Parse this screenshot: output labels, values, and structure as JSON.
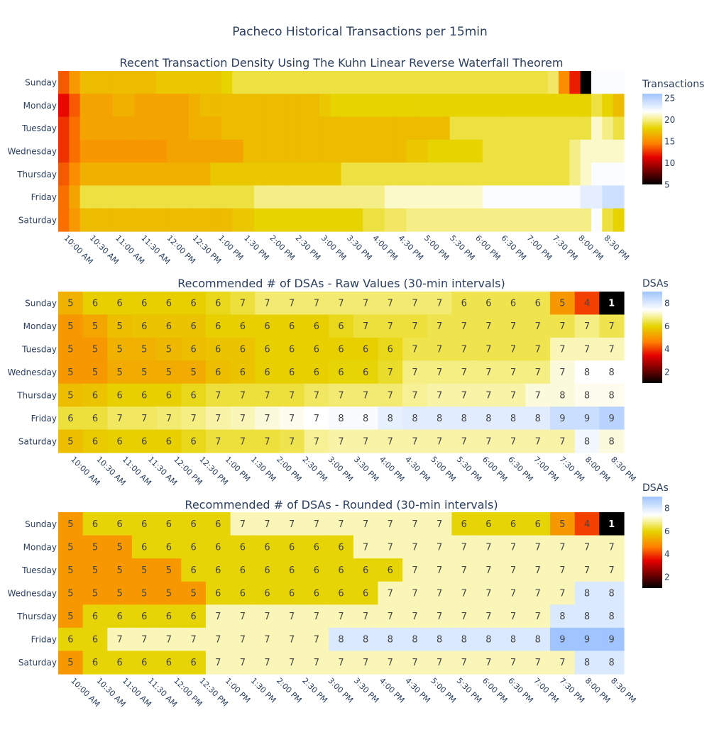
{
  "title": "Pacheco Historical Transactions per 15min",
  "chart_data": [
    {
      "type": "heatmap",
      "title": "Recent Transaction Density Using The Kuhn Linear Reverse Waterfall Theorem",
      "y": [
        "Sunday",
        "Monday",
        "Tuesday",
        "Wednesday",
        "Thursday",
        "Friday",
        "Saturday"
      ],
      "x_tick_labels": [
        "10:00 AM",
        "10:30 AM",
        "11:00 AM",
        "11:30 AM",
        "12:00 PM",
        "12:30 PM",
        "1:00 PM",
        "1:30 PM",
        "2:00 PM",
        "2:30 PM",
        "3:00 PM",
        "3:30 PM",
        "4:00 PM",
        "4:30 PM",
        "5:00 PM",
        "5:30 PM",
        "6:00 PM",
        "6:30 PM",
        "7:00 PM",
        "7:30 PM",
        "8:00 PM",
        "8:30 PM"
      ],
      "x_interval_minutes": 15,
      "z": [
        [
          13.5,
          15.5,
          17,
          17,
          17,
          17,
          17,
          17,
          17,
          17.5,
          17.5,
          17.5,
          17.5,
          17.5,
          17.5,
          18,
          19,
          19,
          19,
          19,
          19,
          19,
          19,
          19,
          19,
          19,
          19,
          19,
          19,
          19,
          19,
          19,
          19,
          19,
          19,
          19,
          19,
          19,
          19,
          19,
          19,
          19,
          19,
          19,
          19,
          19.5,
          15,
          12,
          5,
          22,
          22,
          22
        ],
        [
          11.5,
          13.5,
          16,
          16,
          16,
          16.5,
          16.5,
          16,
          16,
          16,
          16,
          16,
          16.5,
          17,
          17,
          17,
          17,
          17,
          17,
          17,
          17,
          17,
          17,
          17,
          17.5,
          18,
          18,
          18,
          18,
          18,
          18,
          18,
          18,
          18,
          18,
          18,
          18,
          18,
          18,
          18,
          18,
          18,
          18,
          18,
          18,
          18,
          18,
          18,
          18,
          19,
          18,
          17
        ],
        [
          12.5,
          14,
          16,
          16,
          16,
          16,
          16,
          16,
          16,
          16,
          16,
          16,
          16.5,
          16.5,
          16.5,
          17,
          17,
          17,
          17,
          17,
          17,
          17,
          17,
          17,
          17,
          17,
          17,
          17,
          17,
          17,
          17,
          17,
          17,
          17,
          17,
          17,
          19,
          19,
          19,
          19,
          19,
          19,
          19,
          19,
          19,
          19,
          19,
          19,
          19,
          21,
          20,
          19
        ],
        [
          12.5,
          14,
          15.5,
          15.5,
          15.5,
          15.5,
          15.5,
          15.5,
          15.5,
          15.5,
          16,
          16,
          16,
          16,
          16,
          16,
          16,
          17,
          17,
          17,
          17,
          17,
          17,
          17,
          17,
          17,
          17,
          17,
          17,
          17,
          17,
          17,
          17.5,
          17.5,
          18,
          18,
          18,
          18,
          18,
          19,
          19,
          19,
          19,
          19,
          19,
          19,
          19,
          20,
          21,
          21,
          21,
          21
        ],
        [
          13.5,
          15,
          16.5,
          16.5,
          16.5,
          16.5,
          16.5,
          16.5,
          16.5,
          16.5,
          16.5,
          16.5,
          16.5,
          16.5,
          17.5,
          17.5,
          17.5,
          17.5,
          17.5,
          17.5,
          17.5,
          17.5,
          17.5,
          17.5,
          17.5,
          17.5,
          19,
          19,
          19,
          19,
          19,
          19,
          19,
          19,
          19,
          19,
          19,
          19,
          19,
          19,
          19,
          19,
          19,
          19,
          19,
          19,
          19,
          20,
          21,
          22,
          22,
          22
        ],
        [
          14,
          16,
          19,
          19,
          19,
          19,
          19,
          19,
          19,
          19,
          19,
          19,
          19,
          19,
          19,
          19,
          19,
          19,
          20,
          20,
          20,
          20,
          20,
          20,
          20,
          20,
          20,
          20,
          20,
          20,
          21,
          21,
          21,
          21,
          21,
          21,
          21,
          21,
          21,
          22,
          22,
          22,
          22,
          22,
          22,
          22,
          22,
          22,
          23,
          23,
          24,
          24
        ],
        [
          14,
          15.5,
          17,
          17,
          17,
          17,
          17,
          17,
          17,
          17,
          17,
          17,
          17,
          17,
          17,
          17,
          17.5,
          17.5,
          18,
          18,
          18,
          18,
          18,
          18,
          18,
          18,
          18,
          18,
          19,
          19,
          19.5,
          19.5,
          20,
          20,
          20,
          20,
          20,
          20,
          20,
          20,
          20,
          20,
          20,
          20,
          20,
          20,
          20,
          20,
          20,
          22,
          19,
          18
        ]
      ],
      "zmin": 5,
      "zmax": 26,
      "colorbar": {
        "title": "Transactions",
        "ticks": [
          5,
          10,
          15,
          20,
          25
        ]
      },
      "colorscale": "hot-ice"
    },
    {
      "type": "heatmap",
      "title": "Recommended # of DSAs - Raw Values (30-min intervals)",
      "y": [
        "Sunday",
        "Monday",
        "Tuesday",
        "Wednesday",
        "Thursday",
        "Friday",
        "Saturday"
      ],
      "x_tick_labels": [
        "10:00 AM",
        "10:30 AM",
        "11:00 AM",
        "11:30 AM",
        "12:00 PM",
        "12:30 PM",
        "1:00 PM",
        "1:30 PM",
        "2:00 PM",
        "2:30 PM",
        "3:00 PM",
        "3:30 PM",
        "4:00 PM",
        "4:30 PM",
        "5:00 PM",
        "5:30 PM",
        "6:00 PM",
        "6:30 PM",
        "7:00 PM",
        "7:30 PM",
        "8:00 PM",
        "8:30 PM"
      ],
      "z": [
        [
          5.4,
          5.9,
          5.9,
          5.9,
          5.9,
          5.9,
          6.1,
          6.3,
          6.6,
          6.6,
          6.6,
          6.6,
          6.6,
          6.6,
          6.6,
          6.6,
          6.4,
          6.4,
          6.4,
          6.4,
          5.0,
          4.0,
          1.0
        ],
        [
          5.0,
          5.2,
          5.6,
          5.7,
          5.7,
          5.7,
          5.9,
          5.9,
          5.9,
          5.9,
          5.9,
          6.1,
          6.3,
          6.3,
          6.3,
          6.4,
          6.4,
          6.4,
          6.4,
          6.4,
          6.4,
          6.7,
          6.4
        ],
        [
          5.0,
          5.0,
          5.4,
          5.4,
          5.5,
          5.6,
          5.7,
          5.7,
          5.9,
          5.9,
          5.9,
          5.9,
          5.9,
          6.1,
          6.4,
          6.4,
          6.4,
          6.4,
          6.4,
          6.4,
          7.0,
          7.0,
          7.0
        ],
        [
          5.0,
          5.0,
          5.3,
          5.3,
          5.3,
          5.3,
          5.6,
          5.7,
          5.9,
          5.9,
          5.9,
          6.0,
          6.0,
          6.2,
          6.7,
          6.7,
          6.7,
          6.7,
          6.7,
          6.7,
          7.2,
          7.4,
          7.4
        ],
        [
          5.6,
          5.7,
          5.9,
          5.9,
          5.9,
          6.1,
          6.3,
          6.3,
          6.3,
          6.3,
          6.5,
          6.6,
          6.6,
          6.6,
          6.8,
          6.9,
          6.9,
          6.9,
          6.9,
          7.2,
          7.2,
          7.3,
          7.3
        ],
        [
          6.3,
          6.3,
          6.5,
          6.5,
          6.6,
          6.7,
          6.9,
          7.0,
          7.2,
          7.3,
          7.4,
          7.5,
          7.5,
          7.8,
          7.9,
          7.9,
          7.9,
          7.9,
          7.9,
          7.9,
          8.3,
          8.3,
          8.6
        ],
        [
          5.6,
          5.8,
          5.9,
          5.9,
          5.9,
          6.1,
          6.3,
          6.3,
          6.3,
          6.4,
          6.8,
          6.9,
          6.9,
          6.9,
          6.9,
          6.9,
          6.9,
          6.9,
          6.9,
          6.9,
          6.9,
          7.6,
          7.2
        ]
      ],
      "text": [
        [
          5,
          6,
          6,
          6,
          6,
          6,
          6,
          7,
          7,
          7,
          7,
          7,
          7,
          7,
          7,
          7,
          6,
          6,
          6,
          6,
          5,
          4,
          1
        ],
        [
          5,
          5,
          5,
          6,
          6,
          6,
          6,
          6,
          6,
          6,
          6,
          6,
          7,
          7,
          7,
          7,
          7,
          7,
          7,
          7,
          7,
          7,
          7
        ],
        [
          5,
          5,
          5,
          5,
          5,
          6,
          6,
          6,
          6,
          6,
          6,
          6,
          6,
          6,
          7,
          7,
          7,
          7,
          7,
          7,
          7,
          7,
          7
        ],
        [
          5,
          5,
          5,
          5,
          5,
          5,
          6,
          6,
          6,
          6,
          6,
          6,
          6,
          7,
          7,
          7,
          7,
          7,
          7,
          7,
          7,
          8,
          8
        ],
        [
          5,
          6,
          6,
          6,
          6,
          6,
          7,
          7,
          7,
          7,
          7,
          7,
          7,
          7,
          7,
          7,
          7,
          7,
          7,
          7,
          8,
          8,
          8
        ],
        [
          6,
          6,
          7,
          7,
          7,
          7,
          7,
          7,
          7,
          7,
          7,
          8,
          8,
          8,
          8,
          8,
          8,
          8,
          8,
          8,
          9,
          9,
          9
        ],
        [
          5,
          6,
          6,
          6,
          6,
          6,
          7,
          7,
          7,
          7,
          7,
          7,
          7,
          7,
          7,
          7,
          7,
          7,
          7,
          7,
          7,
          8,
          8
        ]
      ],
      "zmin": 1,
      "zmax": 9,
      "colorbar": {
        "title": "DSAs",
        "ticks": [
          2,
          4,
          6,
          8
        ]
      },
      "colorscale": "hot-ice"
    },
    {
      "type": "heatmap",
      "title": "Recommended # of DSAs - Rounded (30-min intervals)",
      "y": [
        "Sunday",
        "Monday",
        "Tuesday",
        "Wednesday",
        "Thursday",
        "Friday",
        "Saturday"
      ],
      "x_tick_labels": [
        "10:00 AM",
        "10:30 AM",
        "11:00 AM",
        "11:30 AM",
        "12:00 PM",
        "12:30 PM",
        "1:00 PM",
        "1:30 PM",
        "2:00 PM",
        "2:30 PM",
        "3:00 PM",
        "3:30 PM",
        "4:00 PM",
        "4:30 PM",
        "5:00 PM",
        "5:30 PM",
        "6:00 PM",
        "6:30 PM",
        "7:00 PM",
        "7:30 PM",
        "8:00 PM",
        "8:30 PM"
      ],
      "z": [
        [
          5,
          6,
          6,
          6,
          6,
          6,
          6,
          7,
          7,
          7,
          7,
          7,
          7,
          7,
          7,
          7,
          6,
          6,
          6,
          6,
          5,
          4,
          1
        ],
        [
          5,
          5,
          5,
          6,
          6,
          6,
          6,
          6,
          6,
          6,
          6,
          6,
          7,
          7,
          7,
          7,
          7,
          7,
          7,
          7,
          7,
          7,
          7
        ],
        [
          5,
          5,
          5,
          5,
          5,
          6,
          6,
          6,
          6,
          6,
          6,
          6,
          6,
          6,
          7,
          7,
          7,
          7,
          7,
          7,
          7,
          7,
          7
        ],
        [
          5,
          5,
          5,
          5,
          5,
          5,
          6,
          6,
          6,
          6,
          6,
          6,
          6,
          7,
          7,
          7,
          7,
          7,
          7,
          7,
          7,
          8,
          8
        ],
        [
          5,
          6,
          6,
          6,
          6,
          6,
          7,
          7,
          7,
          7,
          7,
          7,
          7,
          7,
          7,
          7,
          7,
          7,
          7,
          7,
          8,
          8,
          8
        ],
        [
          6,
          6,
          7,
          7,
          7,
          7,
          7,
          7,
          7,
          7,
          7,
          8,
          8,
          8,
          8,
          8,
          8,
          8,
          8,
          8,
          9,
          9,
          9
        ],
        [
          5,
          6,
          6,
          6,
          6,
          6,
          7,
          7,
          7,
          7,
          7,
          7,
          7,
          7,
          7,
          7,
          7,
          7,
          7,
          7,
          7,
          8,
          8
        ]
      ],
      "zmin": 1,
      "zmax": 9,
      "colorbar": {
        "title": "DSAs",
        "ticks": [
          2,
          4,
          6,
          8
        ]
      },
      "colorscale": "hot-ice"
    }
  ]
}
